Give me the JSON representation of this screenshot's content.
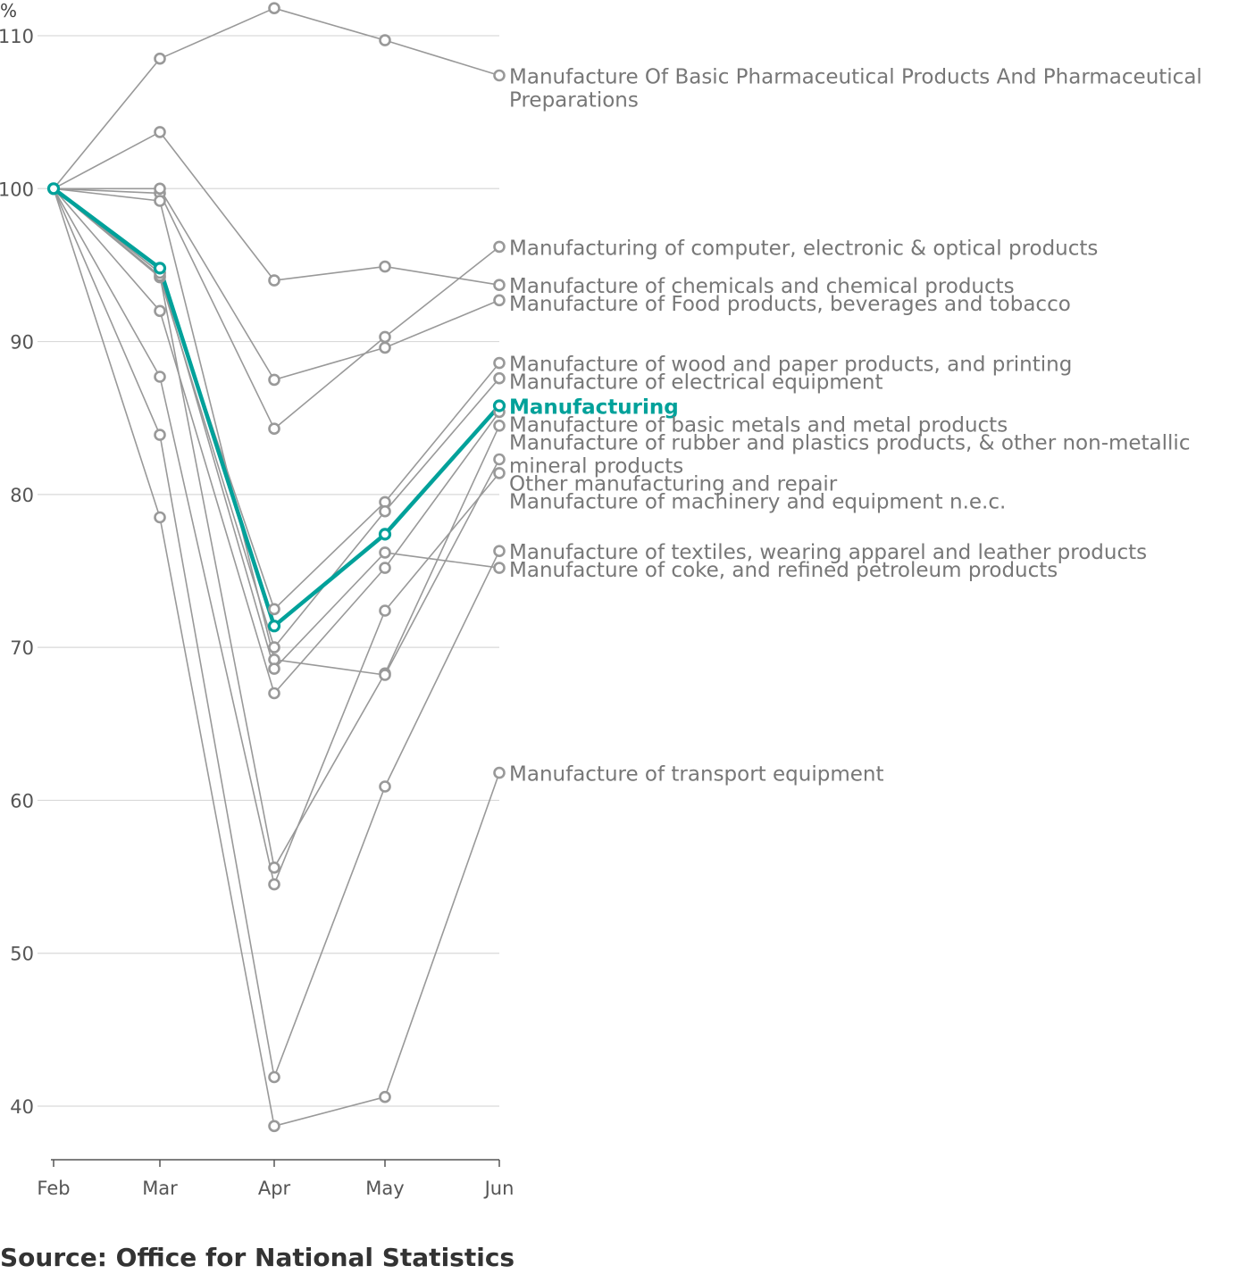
{
  "chart_data": {
    "type": "line",
    "y_unit": "%",
    "categories": [
      "Feb",
      "Mar",
      "Apr",
      "May",
      "Jun"
    ],
    "ylim": [
      36,
      112
    ],
    "yticks": [
      40,
      50,
      60,
      70,
      80,
      90,
      100,
      110
    ],
    "grid": true,
    "highlight_color": "#00a19a",
    "base_color": "#999999",
    "series": [
      {
        "name": "Manufacture Of Basic Pharmaceutical Products And Pharmaceutical Preparations",
        "values": [
          100,
          108.5,
          111.8,
          109.7,
          107.4
        ]
      },
      {
        "name": "Manufacturing of computer, electronic & optical products",
        "values": [
          100,
          99.7,
          84.3,
          90.3,
          96.2
        ]
      },
      {
        "name": "Manufacture of chemicals and chemical products",
        "values": [
          100,
          103.7,
          94.0,
          94.9,
          93.7
        ]
      },
      {
        "name": "Manufacture of Food products, beverages and tobacco",
        "values": [
          100,
          100.0,
          87.5,
          89.6,
          92.7
        ]
      },
      {
        "name": "Manufacture of wood and paper products, and printing",
        "values": [
          100,
          94.5,
          72.5,
          79.5,
          88.6
        ]
      },
      {
        "name": "Manufacture of electrical equipment",
        "values": [
          100,
          94.2,
          70.0,
          78.9,
          87.6
        ]
      },
      {
        "name": "Manufacturing",
        "highlight": true,
        "values": [
          100,
          94.8,
          71.4,
          77.4,
          85.8
        ]
      },
      {
        "name": "Manufacture of basic metals and metal products",
        "values": [
          100,
          92.0,
          67.0,
          75.2,
          85.4
        ]
      },
      {
        "name": "Manufacture of rubber and plastics products, & other non-metallic mineral products",
        "values": [
          100,
          94.3,
          55.6,
          68.3,
          84.5
        ]
      },
      {
        "name": "Other manufacturing and repair",
        "values": [
          100,
          99.2,
          69.2,
          68.2,
          82.3
        ]
      },
      {
        "name": "Manufacture of machinery and equipment n.e.c.",
        "values": [
          100,
          87.7,
          54.5,
          72.4,
          81.4
        ]
      },
      {
        "name": "Manufacture of textiles, wearing apparel and leather products",
        "values": [
          100,
          83.9,
          41.9,
          60.9,
          76.3
        ]
      },
      {
        "name": "Manufacture of coke, and refined petroleum products",
        "values": [
          100,
          94.5,
          68.6,
          76.2,
          75.2
        ]
      },
      {
        "name": "Manufacture of transport equipment",
        "values": [
          100,
          78.5,
          38.7,
          40.6,
          61.8
        ]
      }
    ],
    "labels": [
      {
        "series": 0,
        "lines": [
          "Manufacture Of Basic Pharmaceutical Products And Pharmaceutical",
          "Preparations"
        ]
      },
      {
        "series": 1,
        "lines": [
          "Manufacturing of computer, electronic & optical products"
        ]
      },
      {
        "series": 2,
        "lines": [
          "Manufacture of chemicals and chemical products"
        ]
      },
      {
        "series": 3,
        "lines": [
          "Manufacture of Food products, beverages and tobacco"
        ]
      },
      {
        "series": 4,
        "lines": [
          "Manufacture of wood and paper products, and printing"
        ]
      },
      {
        "series": 5,
        "lines": [
          "Manufacture of electrical equipment"
        ]
      },
      {
        "series": 6,
        "lines": [
          "Manufacturing"
        ]
      },
      {
        "series": 7,
        "lines": [
          "Manufacture of basic metals and metal products"
        ]
      },
      {
        "series": 8,
        "lines": [
          "Manufacture of rubber and plastics products, & other non-metallic",
          "mineral products"
        ]
      },
      {
        "series": 9,
        "lines": [
          "Other manufacturing and repair"
        ]
      },
      {
        "series": 10,
        "lines": [
          "Manufacture of machinery and equipment n.e.c."
        ]
      },
      {
        "series": 11,
        "lines": [
          "Manufacture of textiles, wearing apparel and leather products"
        ]
      },
      {
        "series": 12,
        "lines": [
          "Manufacture of coke, and refined petroleum products"
        ]
      },
      {
        "series": 13,
        "lines": [
          "Manufacture of transport equipment"
        ]
      }
    ]
  },
  "source": "Source: Office for National Statistics"
}
